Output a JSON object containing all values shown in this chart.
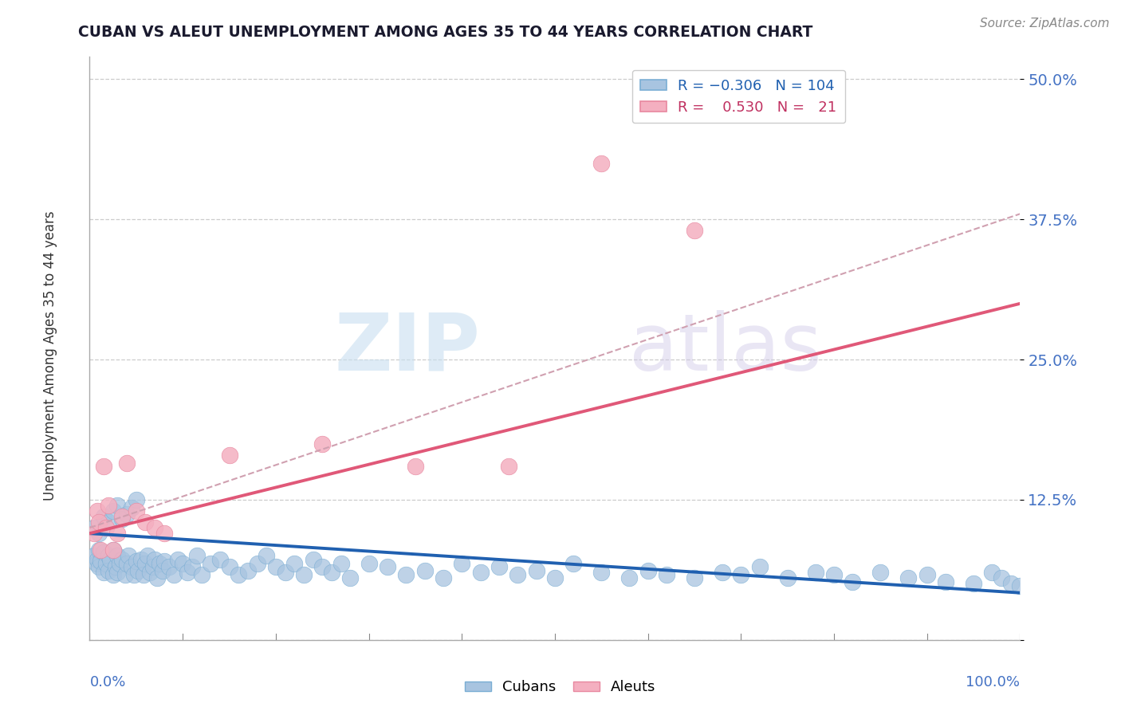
{
  "title": "CUBAN VS ALEUT UNEMPLOYMENT AMONG AGES 35 TO 44 YEARS CORRELATION CHART",
  "source": "Source: ZipAtlas.com",
  "ylabel": "Unemployment Among Ages 35 to 44 years",
  "ytick_values": [
    0.0,
    0.125,
    0.25,
    0.375,
    0.5
  ],
  "ytick_labels": [
    "",
    "12.5%",
    "25.0%",
    "37.5%",
    "50.0%"
  ],
  "cuban_color": "#a8c4e0",
  "cuban_edge_color": "#7aaed4",
  "aleut_color": "#f4afc0",
  "aleut_edge_color": "#e888a0",
  "cuban_line_color": "#2060b0",
  "aleut_line_color": "#e05878",
  "dash_line_color": "#d0a0b0",
  "background_color": "#ffffff",
  "xlim": [
    0.0,
    1.0
  ],
  "ylim": [
    0.0,
    0.52
  ],
  "cuban_x": [
    0.005,
    0.007,
    0.008,
    0.01,
    0.01,
    0.012,
    0.015,
    0.015,
    0.018,
    0.02,
    0.02,
    0.022,
    0.025,
    0.025,
    0.028,
    0.03,
    0.03,
    0.032,
    0.035,
    0.038,
    0.04,
    0.042,
    0.045,
    0.048,
    0.05,
    0.052,
    0.055,
    0.058,
    0.06,
    0.062,
    0.065,
    0.068,
    0.07,
    0.072,
    0.075,
    0.078,
    0.08,
    0.085,
    0.09,
    0.095,
    0.1,
    0.105,
    0.11,
    0.115,
    0.12,
    0.13,
    0.14,
    0.15,
    0.16,
    0.17,
    0.18,
    0.19,
    0.2,
    0.21,
    0.22,
    0.23,
    0.24,
    0.25,
    0.26,
    0.27,
    0.28,
    0.3,
    0.32,
    0.34,
    0.36,
    0.38,
    0.4,
    0.42,
    0.44,
    0.46,
    0.48,
    0.5,
    0.52,
    0.55,
    0.58,
    0.6,
    0.62,
    0.65,
    0.68,
    0.7,
    0.72,
    0.75,
    0.78,
    0.8,
    0.82,
    0.85,
    0.88,
    0.9,
    0.92,
    0.95,
    0.97,
    0.98,
    0.99,
    1.0,
    0.005,
    0.01,
    0.015,
    0.02,
    0.025,
    0.03,
    0.035,
    0.04,
    0.045,
    0.05
  ],
  "cuban_y": [
    0.075,
    0.068,
    0.072,
    0.08,
    0.065,
    0.07,
    0.078,
    0.06,
    0.068,
    0.075,
    0.062,
    0.072,
    0.08,
    0.058,
    0.065,
    0.075,
    0.06,
    0.068,
    0.072,
    0.058,
    0.068,
    0.075,
    0.065,
    0.058,
    0.07,
    0.062,
    0.072,
    0.058,
    0.068,
    0.075,
    0.06,
    0.065,
    0.072,
    0.055,
    0.068,
    0.062,
    0.07,
    0.065,
    0.058,
    0.072,
    0.068,
    0.06,
    0.065,
    0.075,
    0.058,
    0.068,
    0.072,
    0.065,
    0.058,
    0.062,
    0.068,
    0.075,
    0.065,
    0.06,
    0.068,
    0.058,
    0.072,
    0.065,
    0.06,
    0.068,
    0.055,
    0.068,
    0.065,
    0.058,
    0.062,
    0.055,
    0.068,
    0.06,
    0.065,
    0.058,
    0.062,
    0.055,
    0.068,
    0.06,
    0.055,
    0.062,
    0.058,
    0.055,
    0.06,
    0.058,
    0.065,
    0.055,
    0.06,
    0.058,
    0.052,
    0.06,
    0.055,
    0.058,
    0.052,
    0.05,
    0.06,
    0.055,
    0.05,
    0.048,
    0.1,
    0.095,
    0.11,
    0.105,
    0.115,
    0.12,
    0.108,
    0.112,
    0.118,
    0.125
  ],
  "aleut_x": [
    0.005,
    0.008,
    0.01,
    0.012,
    0.015,
    0.018,
    0.02,
    0.025,
    0.03,
    0.035,
    0.04,
    0.05,
    0.06,
    0.07,
    0.08,
    0.15,
    0.25,
    0.35,
    0.45,
    0.55,
    0.65
  ],
  "aleut_y": [
    0.095,
    0.115,
    0.105,
    0.08,
    0.155,
    0.1,
    0.12,
    0.08,
    0.095,
    0.11,
    0.158,
    0.115,
    0.105,
    0.1,
    0.095,
    0.165,
    0.175,
    0.155,
    0.155,
    0.425,
    0.365
  ],
  "cuban_line_x": [
    0.0,
    1.0
  ],
  "cuban_line_y": [
    0.095,
    0.042
  ],
  "aleut_line_x": [
    0.0,
    1.0
  ],
  "aleut_line_y": [
    0.095,
    0.3
  ],
  "dash_line_x": [
    0.0,
    1.0
  ],
  "dash_line_y": [
    0.1,
    0.38
  ]
}
